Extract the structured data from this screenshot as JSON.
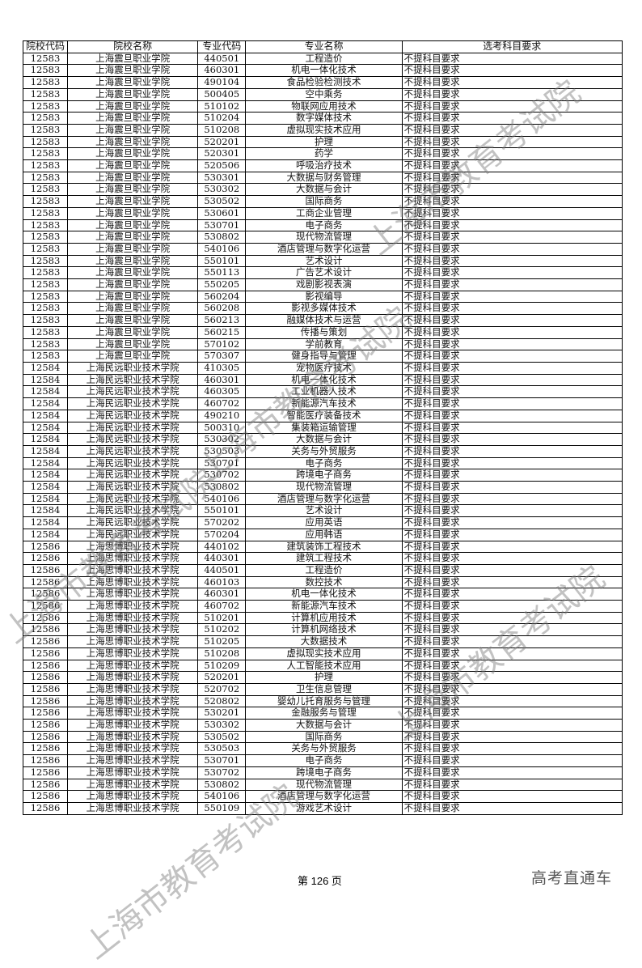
{
  "headers": [
    "院校代码",
    "院校名称",
    "专业代码",
    "专业名称",
    "选考科目要求"
  ],
  "rows": [
    [
      "12583",
      "上海震旦职业学院",
      "440501",
      "工程造价",
      "不提科目要求"
    ],
    [
      "12583",
      "上海震旦职业学院",
      "460301",
      "机电一体化技术",
      "不提科目要求"
    ],
    [
      "12583",
      "上海震旦职业学院",
      "490104",
      "食品检验检测技术",
      "不提科目要求"
    ],
    [
      "12583",
      "上海震旦职业学院",
      "500405",
      "空中乘务",
      "不提科目要求"
    ],
    [
      "12583",
      "上海震旦职业学院",
      "510102",
      "物联网应用技术",
      "不提科目要求"
    ],
    [
      "12583",
      "上海震旦职业学院",
      "510204",
      "数字媒体技术",
      "不提科目要求"
    ],
    [
      "12583",
      "上海震旦职业学院",
      "510208",
      "虚拟现实技术应用",
      "不提科目要求"
    ],
    [
      "12583",
      "上海震旦职业学院",
      "520201",
      "护理",
      "不提科目要求"
    ],
    [
      "12583",
      "上海震旦职业学院",
      "520301",
      "药学",
      "不提科目要求"
    ],
    [
      "12583",
      "上海震旦职业学院",
      "520506",
      "呼吸治疗技术",
      "不提科目要求"
    ],
    [
      "12583",
      "上海震旦职业学院",
      "530301",
      "大数据与财务管理",
      "不提科目要求"
    ],
    [
      "12583",
      "上海震旦职业学院",
      "530302",
      "大数据与会计",
      "不提科目要求"
    ],
    [
      "12583",
      "上海震旦职业学院",
      "530502",
      "国际商务",
      "不提科目要求"
    ],
    [
      "12583",
      "上海震旦职业学院",
      "530601",
      "工商企业管理",
      "不提科目要求"
    ],
    [
      "12583",
      "上海震旦职业学院",
      "530701",
      "电子商务",
      "不提科目要求"
    ],
    [
      "12583",
      "上海震旦职业学院",
      "530802",
      "现代物流管理",
      "不提科目要求"
    ],
    [
      "12583",
      "上海震旦职业学院",
      "540106",
      "酒店管理与数字化运营",
      "不提科目要求"
    ],
    [
      "12583",
      "上海震旦职业学院",
      "550101",
      "艺术设计",
      "不提科目要求"
    ],
    [
      "12583",
      "上海震旦职业学院",
      "550113",
      "广告艺术设计",
      "不提科目要求"
    ],
    [
      "12583",
      "上海震旦职业学院",
      "550205",
      "戏剧影视表演",
      "不提科目要求"
    ],
    [
      "12583",
      "上海震旦职业学院",
      "560204",
      "影视编导",
      "不提科目要求"
    ],
    [
      "12583",
      "上海震旦职业学院",
      "560208",
      "影视多媒体技术",
      "不提科目要求"
    ],
    [
      "12583",
      "上海震旦职业学院",
      "560213",
      "融媒体技术与运营",
      "不提科目要求"
    ],
    [
      "12583",
      "上海震旦职业学院",
      "560215",
      "传播与策划",
      "不提科目要求"
    ],
    [
      "12583",
      "上海震旦职业学院",
      "570102",
      "学前教育",
      "不提科目要求"
    ],
    [
      "12583",
      "上海震旦职业学院",
      "570307",
      "健身指导与管理",
      "不提科目要求"
    ],
    [
      "12584",
      "上海民远职业技术学院",
      "410305",
      "宠物医疗技术",
      "不提科目要求"
    ],
    [
      "12584",
      "上海民远职业技术学院",
      "460301",
      "机电一体化技术",
      "不提科目要求"
    ],
    [
      "12584",
      "上海民远职业技术学院",
      "460305",
      "工业机器人技术",
      "不提科目要求"
    ],
    [
      "12584",
      "上海民远职业技术学院",
      "460702",
      "新能源汽车技术",
      "不提科目要求"
    ],
    [
      "12584",
      "上海民远职业技术学院",
      "490210",
      "智能医疗装备技术",
      "不提科目要求"
    ],
    [
      "12584",
      "上海民远职业技术学院",
      "500310",
      "集装箱运输管理",
      "不提科目要求"
    ],
    [
      "12584",
      "上海民远职业技术学院",
      "530302",
      "大数据与会计",
      "不提科目要求"
    ],
    [
      "12584",
      "上海民远职业技术学院",
      "530503",
      "关务与外贸服务",
      "不提科目要求"
    ],
    [
      "12584",
      "上海民远职业技术学院",
      "530701",
      "电子商务",
      "不提科目要求"
    ],
    [
      "12584",
      "上海民远职业技术学院",
      "530702",
      "跨境电子商务",
      "不提科目要求"
    ],
    [
      "12584",
      "上海民远职业技术学院",
      "530802",
      "现代物流管理",
      "不提科目要求"
    ],
    [
      "12584",
      "上海民远职业技术学院",
      "540106",
      "酒店管理与数字化运营",
      "不提科目要求"
    ],
    [
      "12584",
      "上海民远职业技术学院",
      "550101",
      "艺术设计",
      "不提科目要求"
    ],
    [
      "12584",
      "上海民远职业技术学院",
      "570202",
      "应用英语",
      "不提科目要求"
    ],
    [
      "12584",
      "上海民远职业技术学院",
      "570204",
      "应用韩语",
      "不提科目要求"
    ],
    [
      "12586",
      "上海思博职业技术学院",
      "440102",
      "建筑装饰工程技术",
      "不提科目要求"
    ],
    [
      "12586",
      "上海思博职业技术学院",
      "440301",
      "建筑工程技术",
      "不提科目要求"
    ],
    [
      "12586",
      "上海思博职业技术学院",
      "440501",
      "工程造价",
      "不提科目要求"
    ],
    [
      "12586",
      "上海思博职业技术学院",
      "460103",
      "数控技术",
      "不提科目要求"
    ],
    [
      "12586",
      "上海思博职业技术学院",
      "460301",
      "机电一体化技术",
      "不提科目要求"
    ],
    [
      "12586",
      "上海思博职业技术学院",
      "460702",
      "新能源汽车技术",
      "不提科目要求"
    ],
    [
      "12586",
      "上海思博职业技术学院",
      "510201",
      "计算机应用技术",
      "不提科目要求"
    ],
    [
      "12586",
      "上海思博职业技术学院",
      "510202",
      "计算机网络技术",
      "不提科目要求"
    ],
    [
      "12586",
      "上海思博职业技术学院",
      "510205",
      "大数据技术",
      "不提科目要求"
    ],
    [
      "12586",
      "上海思博职业技术学院",
      "510208",
      "虚拟现实技术应用",
      "不提科目要求"
    ],
    [
      "12586",
      "上海思博职业技术学院",
      "510209",
      "人工智能技术应用",
      "不提科目要求"
    ],
    [
      "12586",
      "上海思博职业技术学院",
      "520201",
      "护理",
      "不提科目要求"
    ],
    [
      "12586",
      "上海思博职业技术学院",
      "520702",
      "卫生信息管理",
      "不提科目要求"
    ],
    [
      "12586",
      "上海思博职业技术学院",
      "520802",
      "婴幼儿托育服务与管理",
      "不提科目要求"
    ],
    [
      "12586",
      "上海思博职业技术学院",
      "530201",
      "金融服务与管理",
      "不提科目要求"
    ],
    [
      "12586",
      "上海思博职业技术学院",
      "530302",
      "大数据与会计",
      "不提科目要求"
    ],
    [
      "12586",
      "上海思博职业技术学院",
      "530502",
      "国际商务",
      "不提科目要求"
    ],
    [
      "12586",
      "上海思博职业技术学院",
      "530503",
      "关务与外贸服务",
      "不提科目要求"
    ],
    [
      "12586",
      "上海思博职业技术学院",
      "530701",
      "电子商务",
      "不提科目要求"
    ],
    [
      "12586",
      "上海思博职业技术学院",
      "530702",
      "跨境电子商务",
      "不提科目要求"
    ],
    [
      "12586",
      "上海思博职业技术学院",
      "530802",
      "现代物流管理",
      "不提科目要求"
    ],
    [
      "12586",
      "上海思博职业技术学院",
      "540106",
      "酒店管理与数字化运营",
      "不提科目要求"
    ],
    [
      "12586",
      "上海思博职业技术学院",
      "550109",
      "游戏艺术设计",
      "不提科目要求"
    ]
  ],
  "footer": {
    "page_label": "第 126 页",
    "brand": "高考直通车"
  },
  "watermark": "上海市教育考试院"
}
